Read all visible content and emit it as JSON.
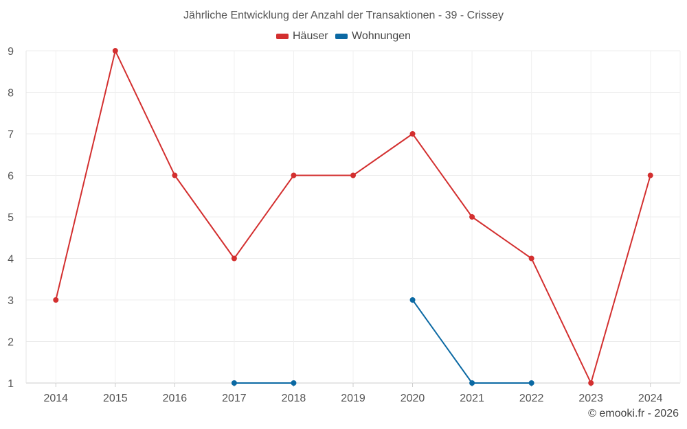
{
  "chart_data": {
    "type": "line",
    "title": "Jährliche Entwicklung der Anzahl der Transaktionen - 39 - Crissey",
    "categories": [
      "2014",
      "2015",
      "2016",
      "2017",
      "2018",
      "2019",
      "2020",
      "2021",
      "2022",
      "2023",
      "2024"
    ],
    "series": [
      {
        "name": "Häuser",
        "color": "#d32f2f",
        "values": [
          3,
          9,
          6,
          4,
          6,
          6,
          7,
          5,
          4,
          1,
          6
        ]
      },
      {
        "name": "Wohnungen",
        "color": "#0b69a3",
        "values": [
          null,
          null,
          null,
          1,
          1,
          null,
          3,
          1,
          1,
          null,
          null
        ]
      }
    ],
    "ylim": [
      1,
      9
    ],
    "yticks": [
      "1",
      "2",
      "3",
      "4",
      "5",
      "6",
      "7",
      "8",
      "9"
    ],
    "xlabel": "",
    "ylabel": "",
    "grid": true,
    "legend_position": "top-center"
  },
  "footer": {
    "copyright": "© emooki.fr - 2026"
  }
}
